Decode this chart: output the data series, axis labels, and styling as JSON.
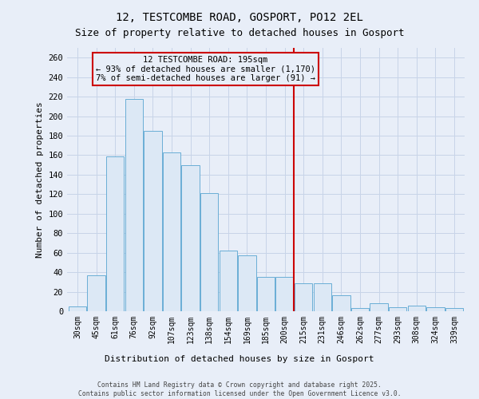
{
  "title1": "12, TESTCOMBE ROAD, GOSPORT, PO12 2EL",
  "title2": "Size of property relative to detached houses in Gosport",
  "xlabel": "Distribution of detached houses by size in Gosport",
  "ylabel": "Number of detached properties",
  "categories": [
    "30sqm",
    "45sqm",
    "61sqm",
    "76sqm",
    "92sqm",
    "107sqm",
    "123sqm",
    "138sqm",
    "154sqm",
    "169sqm",
    "185sqm",
    "200sqm",
    "215sqm",
    "231sqm",
    "246sqm",
    "262sqm",
    "277sqm",
    "293sqm",
    "308sqm",
    "324sqm",
    "339sqm"
  ],
  "values": [
    5,
    37,
    159,
    218,
    185,
    163,
    150,
    121,
    62,
    57,
    35,
    35,
    29,
    29,
    16,
    3,
    8,
    4,
    6,
    4,
    3
  ],
  "bar_color": "#dce8f5",
  "bar_edge_color": "#6aaed6",
  "vline_x": 11.5,
  "vline_color": "#cc0000",
  "annotation_text": "12 TESTCOMBE ROAD: 195sqm\n← 93% of detached houses are smaller (1,170)\n7% of semi-detached houses are larger (91) →",
  "ylim": [
    0,
    270
  ],
  "yticks": [
    0,
    20,
    40,
    60,
    80,
    100,
    120,
    140,
    160,
    180,
    200,
    220,
    240,
    260
  ],
  "footer1": "Contains HM Land Registry data © Crown copyright and database right 2025.",
  "footer2": "Contains public sector information licensed under the Open Government Licence v3.0.",
  "bg_color": "#e8eef8",
  "bar_bg_color": "#ffffff",
  "grid_color": "#c8d4e8"
}
